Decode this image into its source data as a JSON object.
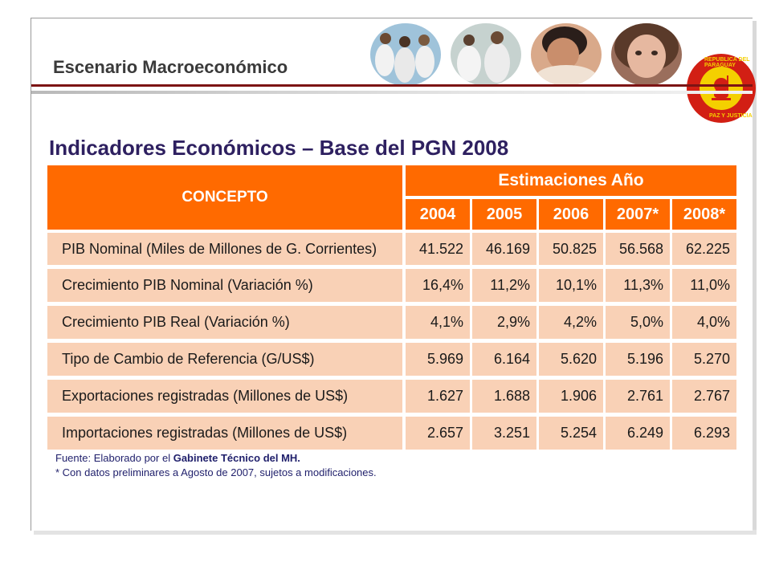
{
  "header": {
    "title": "Escenario Macroeconómico"
  },
  "seal": {
    "text_top": "REPUBLICA DEL PARAGUAY",
    "text_bottom": "PAZ Y JUSTICIA"
  },
  "main": {
    "title": "Indicadores Económicos – Base del PGN 2008"
  },
  "table": {
    "concept_header": "CONCEPTO",
    "estimates_header": "Estimaciones Año",
    "years": [
      "2004",
      "2005",
      "2006",
      "2007*",
      "2008*"
    ],
    "rows": [
      {
        "label": "PIB Nominal (Miles de Millones de G. Corrientes)",
        "values": [
          "41.522",
          "46.169",
          "50.825",
          "56.568",
          "62.225"
        ]
      },
      {
        "label": "Crecimiento PIB Nominal (Variación %)",
        "values": [
          "16,4%",
          "11,2%",
          "10,1%",
          "11,3%",
          "11,0%"
        ]
      },
      {
        "label": "Crecimiento PIB Real (Variación %)",
        "values": [
          "4,1%",
          "2,9%",
          "4,2%",
          "5,0%",
          "4,0%"
        ]
      },
      {
        "label": "Tipo de Cambio de Referencia (G/US$)",
        "values": [
          "5.969",
          "6.164",
          "5.620",
          "5.196",
          "5.270"
        ]
      },
      {
        "label": "Exportaciones registradas (Millones de US$)",
        "values": [
          "1.627",
          "1.688",
          "1.906",
          "2.761",
          "2.767"
        ]
      },
      {
        "label": "Importaciones registradas (Millones de US$)",
        "values": [
          "2.657",
          "3.251",
          "5.254",
          "6.249",
          "6.293"
        ]
      }
    ]
  },
  "footnotes": {
    "source_prefix": "Fuente: Elaborado por el ",
    "source_bold": "Gabinete Técnico del MH.",
    "preliminary": "* Con datos preliminares a Agosto  de 2007, sujetos a modificaciones."
  },
  "colors": {
    "header_orange": "#ff6a00",
    "body_peach": "#f9d1b6",
    "title_navy": "#2e2060",
    "accent_maroon": "#7c1414"
  }
}
